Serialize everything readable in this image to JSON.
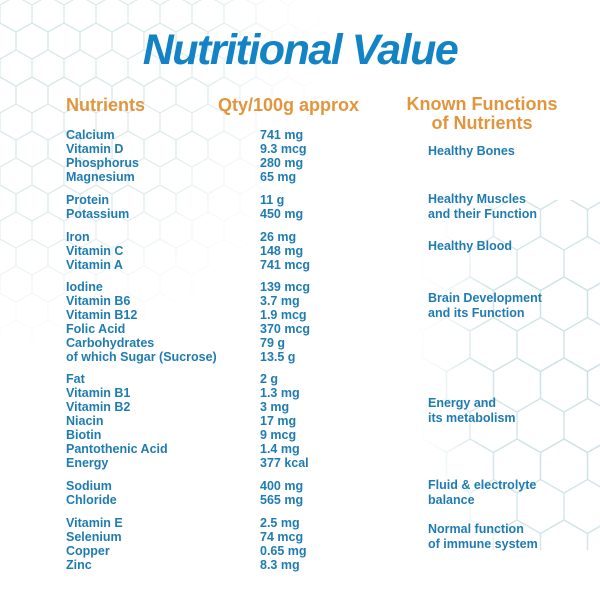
{
  "title": "Nutritional Value",
  "columns": {
    "nutrients": "Nutrients",
    "qty": "Qty/100g approx",
    "functions_line1": "Known Functions",
    "functions_line2": "of Nutrients"
  },
  "groups": [
    {
      "rows": [
        {
          "nutrient": "Calcium",
          "qty": "741 mg"
        },
        {
          "nutrient": "Vitamin D",
          "qty": "9.3 mcg"
        },
        {
          "nutrient": "Phosphorus",
          "qty": "280 mg"
        },
        {
          "nutrient": "Magnesium",
          "qty": "65 mg"
        }
      ],
      "function_lines": [
        "Healthy Bones"
      ]
    },
    {
      "rows": [
        {
          "nutrient": "Protein",
          "qty": "11 g"
        },
        {
          "nutrient": "Potassium",
          "qty": "450 mg"
        }
      ],
      "function_lines": [
        "Healthy Muscles",
        "and their Function"
      ]
    },
    {
      "rows": [
        {
          "nutrient": "Iron",
          "qty": "26 mg"
        },
        {
          "nutrient": "Vitamin C",
          "qty": "148 mg"
        },
        {
          "nutrient": "Vitamin A",
          "qty": "741 mcg"
        }
      ],
      "function_lines": [
        "Healthy Blood"
      ]
    },
    {
      "rows": [
        {
          "nutrient": "Iodine",
          "qty": "139 mcg"
        },
        {
          "nutrient": "Vitamin B6",
          "qty": "3.7 mg"
        },
        {
          "nutrient": "Vitamin B12",
          "qty": "1.9 mcg"
        },
        {
          "nutrient": "Folic Acid",
          "qty": "370 mcg"
        },
        {
          "nutrient": "Carbohydrates",
          "qty": "79 g"
        },
        {
          "nutrient": "of which Sugar (Sucrose)",
          "qty": "13.5 g"
        }
      ],
      "function_lines": [
        "Brain Development",
        "and its Function"
      ]
    },
    {
      "rows": [
        {
          "nutrient": "Fat",
          "qty": "2 g"
        },
        {
          "nutrient": "Vitamin B1",
          "qty": "1.3 mg"
        },
        {
          "nutrient": "Vitamin B2",
          "qty": "3 mg"
        },
        {
          "nutrient": "Niacin",
          "qty": "17 mg"
        },
        {
          "nutrient": "Biotin",
          "qty": "9 mcg"
        },
        {
          "nutrient": "Pantothenic Acid",
          "qty": "1.4 mg"
        },
        {
          "nutrient": "Energy",
          "qty": "377 kcal"
        }
      ],
      "function_lines": [
        "Energy and",
        "its metabolism"
      ]
    },
    {
      "rows": [
        {
          "nutrient": "Sodium",
          "qty": "400 mg"
        },
        {
          "nutrient": "Chloride",
          "qty": "565 mg"
        }
      ],
      "function_lines": [
        "Fluid & electrolyte",
        "balance"
      ]
    },
    {
      "rows": [
        {
          "nutrient": "Vitamin E",
          "qty": "2.5 mg"
        },
        {
          "nutrient": "Selenium",
          "qty": "74 mcg"
        },
        {
          "nutrient": "Copper",
          "qty": "0.65 mg"
        },
        {
          "nutrient": "Zinc",
          "qty": "8.3 mg"
        }
      ],
      "function_lines": [
        "Normal function",
        "of immune system"
      ]
    }
  ],
  "colors": {
    "title_blue": "#1283c4",
    "body_blue": "#1f7cb2",
    "header_orange": "#e2953c",
    "hexagon_stroke_light": "#dcebec",
    "hexagon_stroke_teal": "#c9e0e3",
    "background": "#ffffff"
  }
}
